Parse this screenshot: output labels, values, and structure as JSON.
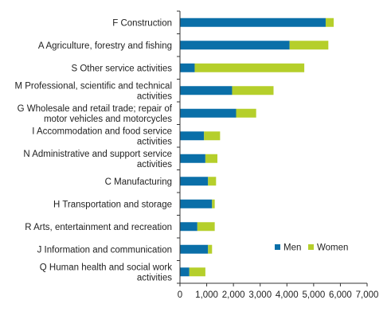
{
  "chart_data": {
    "type": "bar",
    "orientation": "horizontal",
    "stacked": true,
    "categories": [
      "F Construction",
      "A Agriculture, forestry and fishing",
      "S Other service activities",
      "M Professional, scientific and technical activities",
      "G Wholesale and retail trade; repair of motor vehicles and motorcycles",
      "I Accommodation and food service activities",
      "N Administrative and support service activities",
      "C Manufacturing",
      "H Transportation and storage",
      "R Arts, entertainment and recreation",
      "J Information and communication",
      "Q Human health and social work activities"
    ],
    "category_lines": [
      [
        "F Construction"
      ],
      [
        "A Agriculture, forestry and fishing"
      ],
      [
        "S Other service activities"
      ],
      [
        "M Professional, scientific and technical",
        "activities"
      ],
      [
        "G Wholesale and retail trade; repair of",
        "motor vehicles and motorcycles"
      ],
      [
        "I Accommodation and food service",
        "activities"
      ],
      [
        "N Administrative and support service",
        "activities"
      ],
      [
        "C Manufacturing"
      ],
      [
        "H Transportation and storage"
      ],
      [
        "R Arts, entertainment and recreation"
      ],
      [
        "J Information and communication"
      ],
      [
        "Q Human health and social work",
        "activities"
      ]
    ],
    "series": [
      {
        "name": "Men",
        "color": "#0a6fa8",
        "values": [
          5450,
          4100,
          550,
          1950,
          2100,
          900,
          950,
          1050,
          1200,
          650,
          1050,
          350
        ]
      },
      {
        "name": "Women",
        "color": "#b5cf2b",
        "values": [
          300,
          1450,
          4100,
          1550,
          750,
          600,
          450,
          300,
          100,
          650,
          150,
          600
        ]
      }
    ],
    "xlim": [
      0,
      7000
    ],
    "xticks": [
      "0",
      "1,000",
      "2,000",
      "3,000",
      "4,000",
      "5,000",
      "6,000",
      "7,000"
    ],
    "xtick_values": [
      0,
      1000,
      2000,
      3000,
      4000,
      5000,
      6000,
      7000
    ],
    "grid": false,
    "legend_position": "lower-right"
  }
}
